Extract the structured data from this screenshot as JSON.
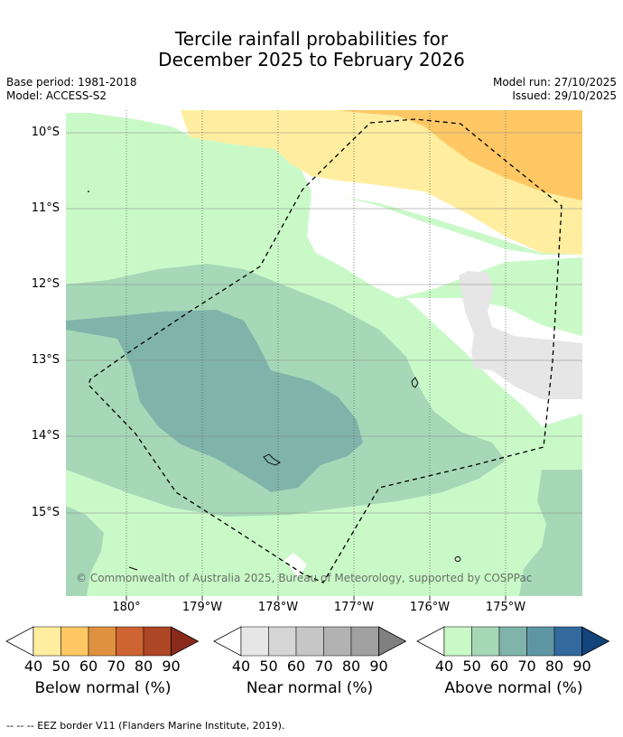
{
  "title": {
    "line1": "Tercile rainfall probabilities for",
    "line2": "December 2025 to February 2026"
  },
  "meta": {
    "base_period": "Base period: 1981-2018",
    "model": "Model: ACCESS-S2",
    "model_run": "Model run: 27/10/2025",
    "issued": "Issued: 29/10/2025"
  },
  "map": {
    "lat_labels": [
      "10°S",
      "11°S",
      "12°S",
      "13°S",
      "14°S",
      "15°S"
    ],
    "lon_labels": [
      "180°",
      "179°W",
      "178°W",
      "177°W",
      "176°W",
      "175°W"
    ],
    "copyright": "© Commonwealth of Australia 2025, Bureau of Meteorology, supported by COSPPac"
  },
  "legends": [
    {
      "name": "Below normal (%)",
      "ticks": [
        "40",
        "50",
        "60",
        "70",
        "80",
        "90"
      ],
      "colors": [
        "#ffeea0",
        "#ffc864",
        "#e0913f",
        "#cd6432",
        "#ac4624",
        "#8a2a1a"
      ]
    },
    {
      "name": "Near normal (%)",
      "ticks": [
        "40",
        "50",
        "60",
        "70",
        "80",
        "90"
      ],
      "colors": [
        "#e6e6e6",
        "#d6d6d6",
        "#c6c6c6",
        "#b2b2b2",
        "#a0a0a0",
        "#808080"
      ]
    },
    {
      "name": "Above normal (%)",
      "ticks": [
        "40",
        "50",
        "60",
        "70",
        "80",
        "90"
      ],
      "colors": [
        "#caf9c8",
        "#a6d8b8",
        "#80b4aa",
        "#5e96a4",
        "#336a9e",
        "#12437a"
      ]
    }
  ],
  "footer": "--  --  -- EEZ border V11 (Flanders Marine Institute, 2019)."
}
